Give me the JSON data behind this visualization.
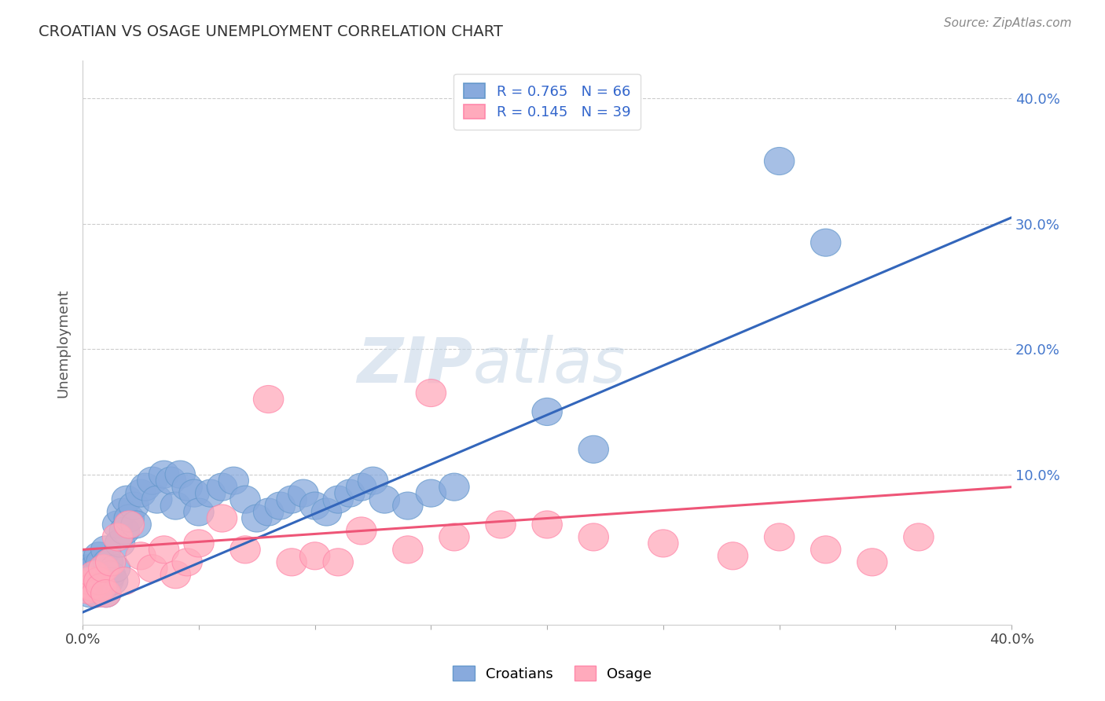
{
  "title": "CROATIAN VS OSAGE UNEMPLOYMENT CORRELATION CHART",
  "source": "Source: ZipAtlas.com",
  "ylabel": "Unemployment",
  "xlim": [
    0.0,
    0.4
  ],
  "ylim": [
    -0.02,
    0.43
  ],
  "background_color": "#ffffff",
  "grid_color": "#cccccc",
  "blue_color": "#88aadd",
  "pink_color": "#ffaabc",
  "blue_edge_color": "#6699cc",
  "pink_edge_color": "#ff88aa",
  "blue_line_color": "#3366bb",
  "pink_line_color": "#ee5577",
  "legend_R_blue": "R = 0.765",
  "legend_N_blue": "N = 66",
  "legend_R_pink": "R = 0.145",
  "legend_N_pink": "N = 39",
  "label_blue": "Croatians",
  "label_pink": "Osage",
  "blue_scatter_x": [
    0.001,
    0.002,
    0.002,
    0.003,
    0.003,
    0.004,
    0.004,
    0.005,
    0.005,
    0.006,
    0.006,
    0.007,
    0.007,
    0.008,
    0.008,
    0.009,
    0.009,
    0.01,
    0.01,
    0.011,
    0.011,
    0.012,
    0.013,
    0.014,
    0.015,
    0.016,
    0.017,
    0.018,
    0.019,
    0.02,
    0.022,
    0.023,
    0.025,
    0.027,
    0.03,
    0.032,
    0.035,
    0.038,
    0.04,
    0.042,
    0.045,
    0.048,
    0.05,
    0.055,
    0.06,
    0.065,
    0.07,
    0.075,
    0.08,
    0.085,
    0.09,
    0.095,
    0.1,
    0.105,
    0.11,
    0.115,
    0.12,
    0.125,
    0.13,
    0.14,
    0.15,
    0.16,
    0.2,
    0.22,
    0.3,
    0.32
  ],
  "blue_scatter_y": [
    0.01,
    0.015,
    0.025,
    0.005,
    0.02,
    0.01,
    0.03,
    0.015,
    0.025,
    0.005,
    0.02,
    0.01,
    0.035,
    0.015,
    0.03,
    0.01,
    0.025,
    0.005,
    0.04,
    0.015,
    0.03,
    0.02,
    0.015,
    0.025,
    0.06,
    0.045,
    0.07,
    0.055,
    0.08,
    0.065,
    0.075,
    0.06,
    0.085,
    0.09,
    0.095,
    0.08,
    0.1,
    0.095,
    0.075,
    0.1,
    0.09,
    0.085,
    0.07,
    0.085,
    0.09,
    0.095,
    0.08,
    0.065,
    0.07,
    0.075,
    0.08,
    0.085,
    0.075,
    0.07,
    0.08,
    0.085,
    0.09,
    0.095,
    0.08,
    0.075,
    0.085,
    0.09,
    0.15,
    0.12,
    0.35,
    0.285
  ],
  "pink_scatter_x": [
    0.001,
    0.002,
    0.003,
    0.004,
    0.005,
    0.006,
    0.007,
    0.008,
    0.009,
    0.01,
    0.012,
    0.015,
    0.018,
    0.02,
    0.025,
    0.03,
    0.035,
    0.04,
    0.045,
    0.05,
    0.06,
    0.07,
    0.08,
    0.09,
    0.1,
    0.11,
    0.12,
    0.14,
    0.15,
    0.16,
    0.18,
    0.2,
    0.22,
    0.25,
    0.28,
    0.3,
    0.32,
    0.34,
    0.36
  ],
  "pink_scatter_y": [
    0.012,
    0.008,
    0.015,
    0.01,
    0.02,
    0.005,
    0.015,
    0.01,
    0.025,
    0.005,
    0.03,
    0.05,
    0.015,
    0.06,
    0.035,
    0.025,
    0.04,
    0.02,
    0.03,
    0.045,
    0.065,
    0.04,
    0.16,
    0.03,
    0.035,
    0.03,
    0.055,
    0.04,
    0.165,
    0.05,
    0.06,
    0.06,
    0.05,
    0.045,
    0.035,
    0.05,
    0.04,
    0.03,
    0.05
  ],
  "blue_trend_x": [
    0.0,
    0.4
  ],
  "blue_trend_y": [
    -0.01,
    0.305
  ],
  "pink_trend_x": [
    0.0,
    0.4
  ],
  "pink_trend_y": [
    0.04,
    0.09
  ]
}
